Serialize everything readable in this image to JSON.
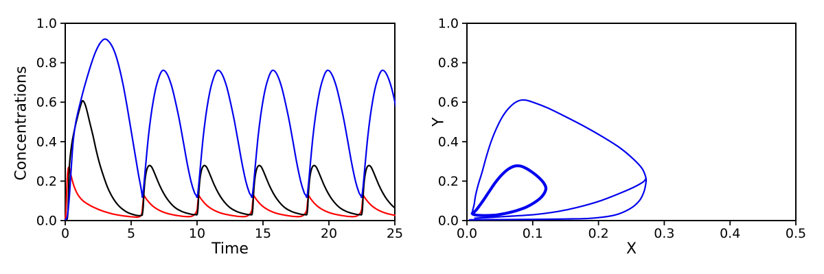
{
  "figure": {
    "background": "#ffffff",
    "spine_color": "#000000"
  },
  "chart_data": [
    {
      "id": "time_series",
      "type": "line",
      "xlabel": "Time",
      "ylabel": "Concentrations",
      "xlim": [
        0,
        25
      ],
      "ylim": [
        0,
        1.0
      ],
      "grid": false,
      "legend": "none",
      "xticks": {
        "values": [
          0,
          5,
          10,
          15,
          20,
          25
        ],
        "labels": [
          "0",
          "5",
          "10",
          "15",
          "20",
          "25"
        ]
      },
      "yticks": {
        "values": [
          0,
          0.2,
          0.4,
          0.6,
          0.8,
          1.0
        ],
        "labels": [
          "0.0",
          "0.2",
          "0.4",
          "0.6",
          "0.8",
          "1.0"
        ]
      },
      "cycle_start_times": [
        5.85,
        10.01,
        14.17,
        18.33,
        22.49
      ],
      "series": [
        {
          "name": "red-concentration",
          "color": "#ff0000",
          "width": 2.2,
          "transient": [
            [
              0,
              0.001
            ],
            [
              0.05,
              0.04
            ],
            [
              0.1,
              0.13
            ],
            [
              0.15,
              0.21
            ],
            [
              0.2,
              0.252
            ],
            [
              0.26,
              0.27
            ],
            [
              0.33,
              0.262
            ],
            [
              0.42,
              0.235
            ],
            [
              0.55,
              0.2
            ],
            [
              0.7,
              0.168
            ],
            [
              0.9,
              0.138
            ],
            [
              1.1,
              0.118
            ],
            [
              1.35,
              0.1
            ],
            [
              1.6,
              0.088
            ],
            [
              1.9,
              0.076
            ],
            [
              2.2,
              0.066
            ],
            [
              2.5,
              0.057
            ],
            [
              2.9,
              0.047
            ],
            [
              3.3,
              0.039
            ],
            [
              3.7,
              0.032
            ],
            [
              4.1,
              0.027
            ],
            [
              4.5,
              0.023
            ],
            [
              4.9,
              0.02
            ],
            [
              5.25,
              0.018
            ],
            [
              5.55,
              0.018
            ],
            [
              5.75,
              0.026
            ],
            [
              5.82,
              0.04
            ]
          ],
          "cycle": [
            [
              0,
              0.058
            ],
            [
              0.06,
              0.1
            ],
            [
              0.12,
              0.125
            ],
            [
              0.2,
              0.119
            ],
            [
              0.35,
              0.105
            ],
            [
              0.55,
              0.089
            ],
            [
              0.8,
              0.073
            ],
            [
              1.1,
              0.059
            ],
            [
              1.45,
              0.047
            ],
            [
              1.8,
              0.038
            ],
            [
              2.2,
              0.031
            ],
            [
              2.6,
              0.026
            ],
            [
              3.0,
              0.022
            ],
            [
              3.4,
              0.02
            ],
            [
              3.7,
              0.021
            ],
            [
              3.95,
              0.03
            ],
            [
              4.1,
              0.044
            ]
          ]
        },
        {
          "name": "black-concentration",
          "color": "#000000",
          "width": 2.2,
          "transient": [
            [
              0,
              0.001
            ],
            [
              0.1,
              0.004
            ],
            [
              0.16,
              0.012
            ],
            [
              0.21,
              0.05
            ],
            [
              0.25,
              0.14
            ],
            [
              0.28,
              0.22
            ],
            [
              0.33,
              0.29
            ],
            [
              0.42,
              0.35
            ],
            [
              0.55,
              0.41
            ],
            [
              0.75,
              0.475
            ],
            [
              0.95,
              0.53
            ],
            [
              1.1,
              0.568
            ],
            [
              1.25,
              0.6
            ],
            [
              1.35,
              0.607
            ],
            [
              1.5,
              0.59
            ],
            [
              1.65,
              0.556
            ],
            [
              1.85,
              0.5
            ],
            [
              2.1,
              0.432
            ],
            [
              2.35,
              0.356
            ],
            [
              2.6,
              0.29
            ],
            [
              2.9,
              0.226
            ],
            [
              3.2,
              0.17
            ],
            [
              3.5,
              0.128
            ],
            [
              3.8,
              0.096
            ],
            [
              4.1,
              0.072
            ],
            [
              4.4,
              0.055
            ],
            [
              4.7,
              0.042
            ],
            [
              5.0,
              0.034
            ],
            [
              5.3,
              0.028
            ],
            [
              5.6,
              0.025
            ],
            [
              5.82,
              0.027
            ]
          ],
          "cycle": [
            [
              0,
              0.032
            ],
            [
              0.06,
              0.065
            ],
            [
              0.12,
              0.14
            ],
            [
              0.2,
              0.205
            ],
            [
              0.3,
              0.248
            ],
            [
              0.42,
              0.272
            ],
            [
              0.55,
              0.279
            ],
            [
              0.7,
              0.272
            ],
            [
              0.85,
              0.252
            ],
            [
              1.05,
              0.22
            ],
            [
              1.3,
              0.18
            ],
            [
              1.6,
              0.14
            ],
            [
              1.9,
              0.108
            ],
            [
              2.25,
              0.08
            ],
            [
              2.6,
              0.06
            ],
            [
              3.0,
              0.046
            ],
            [
              3.4,
              0.037
            ],
            [
              3.8,
              0.031
            ],
            [
              4.05,
              0.03
            ]
          ]
        },
        {
          "name": "blue-concentration",
          "color": "#0000ee",
          "width": 2.2,
          "transient": [
            [
              0,
              0.005
            ],
            [
              0.15,
              0.02
            ],
            [
              0.3,
              0.11
            ],
            [
              0.45,
              0.26
            ],
            [
              0.6,
              0.4
            ],
            [
              0.78,
              0.49
            ],
            [
              0.95,
              0.545
            ],
            [
              1.15,
              0.6
            ],
            [
              1.4,
              0.665
            ],
            [
              1.7,
              0.735
            ],
            [
              2.0,
              0.8
            ],
            [
              2.3,
              0.855
            ],
            [
              2.6,
              0.895
            ],
            [
              2.85,
              0.915
            ],
            [
              3.0,
              0.92
            ],
            [
              3.2,
              0.915
            ],
            [
              3.5,
              0.89
            ],
            [
              3.8,
              0.845
            ],
            [
              4.1,
              0.775
            ],
            [
              4.4,
              0.685
            ],
            [
              4.7,
              0.575
            ],
            [
              5.0,
              0.455
            ],
            [
              5.3,
              0.335
            ],
            [
              5.55,
              0.235
            ],
            [
              5.72,
              0.175
            ],
            [
              5.82,
              0.135
            ]
          ],
          "cycle": [
            [
              0,
              0.12
            ],
            [
              0.1,
              0.17
            ],
            [
              0.25,
              0.28
            ],
            [
              0.45,
              0.42
            ],
            [
              0.65,
              0.53
            ],
            [
              0.85,
              0.615
            ],
            [
              1.05,
              0.68
            ],
            [
              1.25,
              0.725
            ],
            [
              1.42,
              0.752
            ],
            [
              1.58,
              0.762
            ],
            [
              1.78,
              0.753
            ],
            [
              2.0,
              0.725
            ],
            [
              2.25,
              0.675
            ],
            [
              2.5,
              0.606
            ],
            [
              2.8,
              0.512
            ],
            [
              3.1,
              0.402
            ],
            [
              3.4,
              0.29
            ],
            [
              3.7,
              0.196
            ],
            [
              3.95,
              0.142
            ],
            [
              4.08,
              0.128
            ]
          ]
        }
      ]
    },
    {
      "id": "phase_portrait",
      "type": "line",
      "xlabel": "X",
      "ylabel": "Y",
      "xlim": [
        0,
        0.5
      ],
      "ylim": [
        0,
        1.0
      ],
      "grid": false,
      "legend": "none",
      "xticks": {
        "values": [
          0,
          0.1,
          0.2,
          0.3,
          0.4,
          0.5
        ],
        "labels": [
          "0.0",
          "0.1",
          "0.2",
          "0.3",
          "0.4",
          "0.5"
        ]
      },
      "yticks": {
        "values": [
          0,
          0.2,
          0.4,
          0.6,
          0.8,
          1.0
        ],
        "labels": [
          "0.0",
          "0.2",
          "0.4",
          "0.6",
          "0.8",
          "1.0"
        ]
      },
      "paths": [
        {
          "name": "outer-transient-loop",
          "color": "#0000ee",
          "width": 2.2,
          "closed": false,
          "points": [
            [
              0.004,
              0.004
            ],
            [
              0.05,
              0.005
            ],
            [
              0.1,
              0.006
            ],
            [
              0.15,
              0.008
            ],
            [
              0.19,
              0.012
            ],
            [
              0.225,
              0.028
            ],
            [
              0.248,
              0.06
            ],
            [
              0.262,
              0.1
            ],
            [
              0.269,
              0.145
            ],
            [
              0.272,
              0.19
            ],
            [
              0.272,
              0.218
            ],
            [
              0.266,
              0.265
            ],
            [
              0.252,
              0.315
            ],
            [
              0.232,
              0.37
            ],
            [
              0.206,
              0.425
            ],
            [
              0.177,
              0.48
            ],
            [
              0.148,
              0.53
            ],
            [
              0.122,
              0.572
            ],
            [
              0.102,
              0.598
            ],
            [
              0.088,
              0.611
            ],
            [
              0.077,
              0.605
            ],
            [
              0.066,
              0.578
            ],
            [
              0.055,
              0.532
            ],
            [
              0.045,
              0.468
            ],
            [
              0.036,
              0.393
            ],
            [
              0.029,
              0.318
            ],
            [
              0.023,
              0.245
            ],
            [
              0.017,
              0.18
            ],
            [
              0.013,
              0.125
            ],
            [
              0.011,
              0.082
            ],
            [
              0.009,
              0.055
            ],
            [
              0.008,
              0.04
            ]
          ]
        },
        {
          "name": "settling-approach-arc",
          "color": "#0000ee",
          "width": 2.2,
          "closed": false,
          "points": [
            [
              0.012,
              0.012
            ],
            [
              0.04,
              0.017
            ],
            [
              0.07,
              0.023
            ],
            [
              0.105,
              0.031
            ],
            [
              0.14,
              0.047
            ],
            [
              0.167,
              0.066
            ],
            [
              0.2,
              0.097
            ],
            [
              0.23,
              0.135
            ],
            [
              0.253,
              0.168
            ],
            [
              0.268,
              0.196
            ],
            [
              0.2715,
              0.21
            ]
          ]
        },
        {
          "name": "limit-cycle",
          "color": "#0000ee",
          "width": 4.2,
          "closed": true,
          "points": [
            [
              0.008,
              0.036
            ],
            [
              0.01,
              0.031
            ],
            [
              0.014,
              0.028
            ],
            [
              0.02,
              0.026
            ],
            [
              0.028,
              0.0255
            ],
            [
              0.037,
              0.0265
            ],
            [
              0.046,
              0.029
            ],
            [
              0.055,
              0.034
            ],
            [
              0.065,
              0.041
            ],
            [
              0.077,
              0.052
            ],
            [
              0.09,
              0.068
            ],
            [
              0.102,
              0.09
            ],
            [
              0.112,
              0.115
            ],
            [
              0.118,
              0.141
            ],
            [
              0.12,
              0.166
            ],
            [
              0.116,
              0.194
            ],
            [
              0.108,
              0.222
            ],
            [
              0.098,
              0.248
            ],
            [
              0.088,
              0.268
            ],
            [
              0.08,
              0.277
            ],
            [
              0.072,
              0.2755
            ],
            [
              0.063,
              0.261
            ],
            [
              0.053,
              0.232
            ],
            [
              0.043,
              0.192
            ],
            [
              0.034,
              0.148
            ],
            [
              0.026,
              0.108
            ],
            [
              0.019,
              0.075
            ],
            [
              0.014,
              0.053
            ],
            [
              0.01,
              0.041
            ]
          ]
        }
      ]
    }
  ]
}
